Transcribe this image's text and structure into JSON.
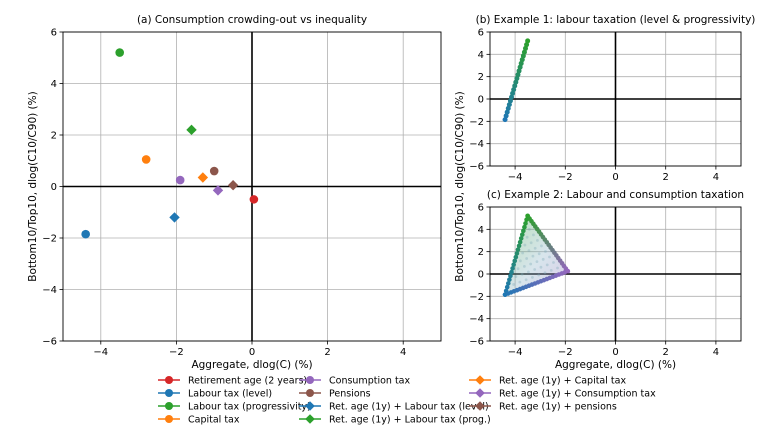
{
  "chart_data": [
    {
      "id": "a",
      "type": "scatter",
      "title": "(a) Consumption crowding-out vs inequality",
      "xlabel": "Aggregate, dlog(C) (%)",
      "ylabel": "Bottom10/Top10, dlog(C10/C90) (%)",
      "xlim": [
        -5,
        5
      ],
      "ylim": [
        -6,
        6
      ],
      "xticks": [
        -4,
        -2,
        0,
        2,
        4
      ],
      "yticks": [
        -6,
        -4,
        -2,
        0,
        2,
        4,
        6
      ],
      "xtick_labels": [
        "−4",
        "−2",
        "0",
        "2",
        "4"
      ],
      "ytick_labels": [
        "−6",
        "−4",
        "−2",
        "0",
        "2",
        "4",
        "6"
      ],
      "grid": true,
      "points": [
        {
          "label": "Retirement age (2 years)",
          "x": 0.05,
          "y": -0.5,
          "marker": "circle",
          "color": "#d62728"
        },
        {
          "label": "Labour tax (level)",
          "x": -4.4,
          "y": -1.85,
          "marker": "circle",
          "color": "#1f77b4"
        },
        {
          "label": "Labour tax (progressivity)",
          "x": -3.5,
          "y": 5.2,
          "marker": "circle",
          "color": "#2ca02c"
        },
        {
          "label": "Capital tax",
          "x": -2.8,
          "y": 1.05,
          "marker": "circle",
          "color": "#ff7f0e"
        },
        {
          "label": "Consumption tax",
          "x": -1.9,
          "y": 0.25,
          "marker": "circle",
          "color": "#9467bd"
        },
        {
          "label": "Pensions",
          "x": -1.0,
          "y": 0.6,
          "marker": "circle",
          "color": "#8c564b"
        },
        {
          "label": "Ret. age (1y) + Labour tax (level)",
          "x": -2.05,
          "y": -1.2,
          "marker": "diamond",
          "color": "#1f77b4"
        },
        {
          "label": "Ret. age (1y) + Labour tax (prog.)",
          "x": -1.6,
          "y": 2.2,
          "marker": "diamond",
          "color": "#2ca02c"
        },
        {
          "label": "Ret. age (1y) + Capital tax",
          "x": -1.3,
          "y": 0.35,
          "marker": "diamond",
          "color": "#ff7f0e"
        },
        {
          "label": "Ret. age (1y) + Consumption tax",
          "x": -0.9,
          "y": -0.15,
          "marker": "diamond",
          "color": "#9467bd"
        },
        {
          "label": "Ret. age (1y) + pensions",
          "x": -0.5,
          "y": 0.05,
          "marker": "diamond",
          "color": "#8c564b"
        }
      ]
    },
    {
      "id": "b",
      "type": "scatter",
      "title": "(b) Example 1: labour taxation (level & progressivity)",
      "xlim": [
        -5,
        5
      ],
      "ylim": [
        -6,
        6
      ],
      "xticks": [
        -4,
        -2,
        0,
        2,
        4
      ],
      "yticks": [
        -6,
        -4,
        -2,
        0,
        2,
        4,
        6
      ],
      "xtick_labels": [
        "−4",
        "−2",
        "0",
        "2",
        "4"
      ],
      "ytick_labels": [
        "−6",
        "−4",
        "−2",
        "0",
        "2",
        "4",
        "6"
      ],
      "grid": true,
      "path": {
        "from": [
          -4.4,
          -1.85
        ],
        "to": [
          -3.5,
          5.2
        ],
        "n": 22,
        "color_from": "#1f77b4",
        "color_to": "#2ca02c"
      }
    },
    {
      "id": "c",
      "type": "scatter",
      "title": "(c) Example 2: Labour and consumption taxation",
      "xlim": [
        -5,
        5
      ],
      "ylim": [
        -6,
        6
      ],
      "xticks": [
        -4,
        -2,
        0,
        2,
        4
      ],
      "yticks": [
        -6,
        -4,
        -2,
        0,
        2,
        4,
        6
      ],
      "xtick_labels": [
        "−4",
        "−2",
        "0",
        "2",
        "4"
      ],
      "ytick_labels": [
        "−6",
        "−4",
        "−2",
        "0",
        "2",
        "4",
        "6"
      ],
      "grid": true,
      "triangle": [
        [
          -4.4,
          -1.85
        ],
        [
          -3.5,
          5.2
        ],
        [
          -1.9,
          0.25
        ]
      ],
      "edge_colors": [
        "#2ca02c",
        "#1f77b4",
        "#9467bd"
      ]
    }
  ],
  "shared_xlabel": "Aggregate, dlog(C) (%)",
  "shared_ylabel": "Bottom10/Top10, dlog(C10/C90) (%)",
  "legend": [
    {
      "label": "Retirement age (2 years)",
      "marker": "circle",
      "color": "#d62728"
    },
    {
      "label": "Labour tax (level)",
      "marker": "circle",
      "color": "#1f77b4"
    },
    {
      "label": "Labour tax (progressivity)",
      "marker": "circle",
      "color": "#2ca02c"
    },
    {
      "label": "Capital tax",
      "marker": "circle",
      "color": "#ff7f0e"
    },
    {
      "label": "Consumption tax",
      "marker": "circle",
      "color": "#9467bd"
    },
    {
      "label": "Pensions",
      "marker": "circle",
      "color": "#8c564b"
    },
    {
      "label": "Ret. age (1y) + Labour tax (level)",
      "marker": "diamond",
      "color": "#1f77b4"
    },
    {
      "label": "Ret. age (1y) + Labour tax (prog.)",
      "marker": "diamond",
      "color": "#2ca02c"
    },
    {
      "label": "Ret. age (1y) + Capital tax",
      "marker": "diamond",
      "color": "#ff7f0e"
    },
    {
      "label": "Ret. age (1y) + Consumption tax",
      "marker": "diamond",
      "color": "#9467bd"
    },
    {
      "label": "Ret. age (1y) + pensions",
      "marker": "diamond",
      "color": "#8c564b"
    }
  ]
}
